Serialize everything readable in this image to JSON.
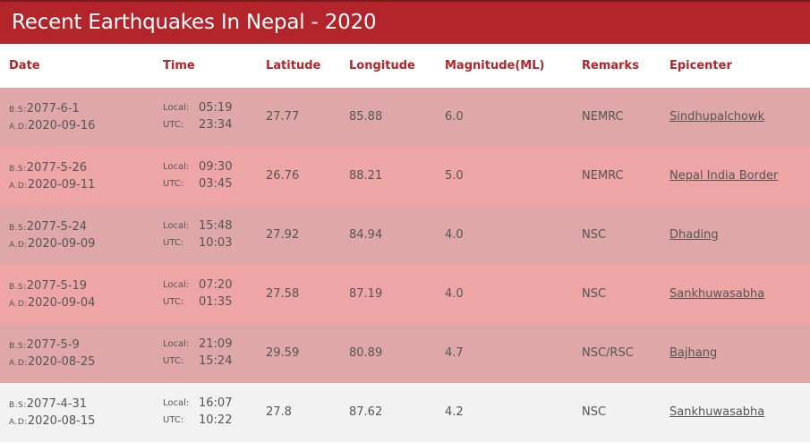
{
  "page": {
    "title": "Recent Earthquakes In Nepal - 2020"
  },
  "colors": {
    "banner": "#b3252a",
    "header_text": "#b3252a",
    "row_shade_a": "#dfa7a7",
    "row_shade_b": "#eea5a6",
    "row_shade_c": "#f2f2f2",
    "body_text": "#555555"
  },
  "table": {
    "headers": {
      "date": "Date",
      "time": "Time",
      "latitude": "Latitude",
      "longitude": "Longitude",
      "magnitude": "Magnitude(ML)",
      "remarks": "Remarks",
      "epicenter": "Epicenter"
    },
    "bs_prefix": "B.S:",
    "ad_prefix": "A.D:",
    "local_label": "Local:",
    "utc_label": "UTC:",
    "rows": [
      {
        "bs": "2077-6-1",
        "ad": "2020-09-16",
        "local": "05:19",
        "utc": "23:34",
        "lat": "27.77",
        "lon": "85.88",
        "mag": "6.0",
        "remarks": "NEMRC",
        "epicenter": "Sindhupalchowk"
      },
      {
        "bs": "2077-5-26",
        "ad": "2020-09-11",
        "local": "09:30",
        "utc": "03:45",
        "lat": "26.76",
        "lon": "88.21",
        "mag": "5.0",
        "remarks": "NEMRC",
        "epicenter": "Nepal India Border"
      },
      {
        "bs": "2077-5-24",
        "ad": "2020-09-09",
        "local": "15:48",
        "utc": "10:03",
        "lat": "27.92",
        "lon": "84.94",
        "mag": "4.0",
        "remarks": "NSC",
        "epicenter": "Dhading"
      },
      {
        "bs": "2077-5-19",
        "ad": "2020-09-04",
        "local": "07:20",
        "utc": "01:35",
        "lat": "27.58",
        "lon": "87.19",
        "mag": "4.0",
        "remarks": "NSC",
        "epicenter": "Sankhuwasabha"
      },
      {
        "bs": "2077-5-9",
        "ad": "2020-08-25",
        "local": "21:09",
        "utc": "15:24",
        "lat": "29.59",
        "lon": "80.89",
        "mag": "4.7",
        "remarks": "NSC/RSC",
        "epicenter": "Bajhang"
      },
      {
        "bs": "2077-4-31",
        "ad": "2020-08-15",
        "local": "16:07",
        "utc": "10:22",
        "lat": "27.8",
        "lon": "87.62",
        "mag": "4.2",
        "remarks": "NSC",
        "epicenter": "Sankhuwasabha"
      }
    ]
  }
}
